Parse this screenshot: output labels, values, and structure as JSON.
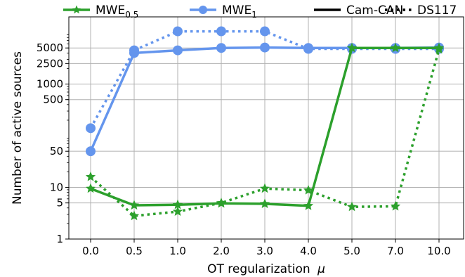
{
  "chart_data": {
    "type": "line",
    "x_tick_labels": [
      "0.0",
      "0.5",
      "1.0",
      "2.0",
      "3.0",
      "4.0",
      "5.0",
      "7.0",
      "10.0"
    ],
    "xlabel": "OT regularization",
    "xlabel_symbol": "μ",
    "ylabel": "Number of active sources",
    "y_scale": "log",
    "ylim": [
      1,
      20000
    ],
    "y_ticks": [
      1,
      5,
      10,
      50,
      500,
      1000,
      2500,
      5000
    ],
    "y_tick_labels": [
      "1",
      "5",
      "10",
      "50",
      "500",
      "1000",
      "2500",
      "5000"
    ],
    "grid": true,
    "legend_position": "top",
    "series": [
      {
        "name": "MWE0.5 Cam-CAN",
        "method": "mwe05",
        "dataset": "camcan",
        "values": [
          9.5,
          4.5,
          4.6,
          4.9,
          4.8,
          4.4,
          5000,
          5000,
          5000
        ]
      },
      {
        "name": "MWE0.5 DS117",
        "method": "mwe05",
        "dataset": "ds117",
        "values": [
          16,
          2.8,
          3.4,
          5.0,
          9.5,
          8.8,
          4.2,
          4.3,
          4700
        ]
      },
      {
        "name": "MWE1 Cam-CAN",
        "method": "mwe1",
        "dataset": "camcan",
        "values": [
          50,
          4000,
          4500,
          5000,
          5100,
          5000,
          5000,
          5000,
          5100
        ]
      },
      {
        "name": "MWE1 DS117",
        "method": "mwe1",
        "dataset": "ds117",
        "values": [
          140,
          4500,
          10500,
          10500,
          10500,
          4800,
          4800,
          4800,
          4800
        ]
      }
    ],
    "legend": [
      {
        "label_main": "MWE",
        "label_sub": "0.5",
        "kind": "method",
        "marker": "star",
        "color": "#2ca02c"
      },
      {
        "label_main": "MWE",
        "label_sub": "1",
        "kind": "method",
        "marker": "circle",
        "color": "#6495ed"
      },
      {
        "label_main": "Cam-CAN",
        "label_sub": "",
        "kind": "style",
        "dash": "solid",
        "color": "#000000"
      },
      {
        "label_main": "DS117",
        "label_sub": "",
        "kind": "style",
        "dash": "dotted",
        "color": "#000000"
      }
    ],
    "colors": {
      "mwe05": "#2ca02c",
      "mwe1": "#6495ed",
      "grid": "#b0b0b0"
    }
  }
}
